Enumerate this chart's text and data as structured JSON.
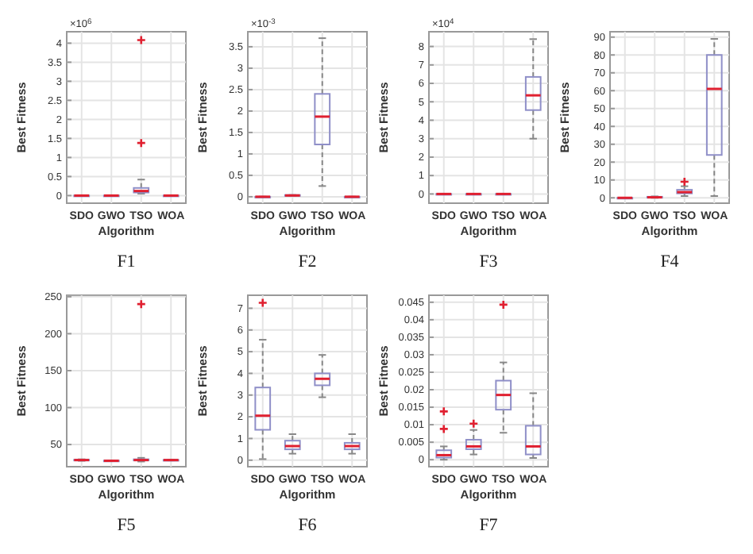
{
  "chart_data": [
    {
      "type": "box",
      "title": "F1",
      "xlabel": "Algorithm",
      "ylabel": "Best Fitness",
      "annotations": [
        "×10$^{6}$"
      ],
      "categories": [
        "SDO",
        "GWO",
        "TSO",
        "WOA"
      ],
      "ylim": [
        -0.2,
        4.3
      ],
      "yticks": [
        0,
        0.5,
        1,
        1.5,
        2,
        2.5,
        3,
        3.5,
        4
      ],
      "grid": true,
      "color": "#8f8fc8",
      "boxes": [
        {
          "low": 0,
          "q1": 0,
          "median": 0,
          "q3": 0,
          "high": 0
        },
        {
          "low": 0,
          "q1": 0,
          "median": 0,
          "q3": 0,
          "high": 0
        },
        {
          "low": 0.05,
          "q1": 0.08,
          "median": 0.12,
          "q3": 0.2,
          "high": 0.42,
          "outliers": [
            1.38,
            4.08
          ]
        },
        {
          "low": 0,
          "q1": 0,
          "median": 0,
          "q3": 0,
          "high": 0
        }
      ]
    },
    {
      "type": "box",
      "title": "F2",
      "xlabel": "Algorithm",
      "ylabel": "Best Fitness",
      "annotations": [
        "×10$^{-3}$"
      ],
      "categories": [
        "SDO",
        "GWO",
        "TSO",
        "WOA"
      ],
      "ylim": [
        -0.15,
        3.85
      ],
      "yticks": [
        0,
        0.5,
        1,
        1.5,
        2,
        2.5,
        3,
        3.5
      ],
      "grid": true,
      "color": "#8f8fc8",
      "boxes": [
        {
          "low": 0,
          "q1": 0,
          "median": 0,
          "q3": 0,
          "high": 0
        },
        {
          "low": 0.02,
          "q1": 0.02,
          "median": 0.03,
          "q3": 0.04,
          "high": 0.04
        },
        {
          "low": 0.25,
          "q1": 1.22,
          "median": 1.87,
          "q3": 2.4,
          "high": 3.7
        },
        {
          "low": 0,
          "q1": 0,
          "median": 0,
          "q3": 0,
          "high": 0
        }
      ]
    },
    {
      "type": "box",
      "title": "F3",
      "xlabel": "Algorithm",
      "ylabel": "Best Fitness",
      "annotations": [
        "×10$^{4}$"
      ],
      "categories": [
        "SDO",
        "GWO",
        "TSO",
        "WOA"
      ],
      "ylim": [
        -0.5,
        8.8
      ],
      "yticks": [
        0,
        1,
        2,
        3,
        4,
        5,
        6,
        7,
        8
      ],
      "grid": true,
      "color": "#8f8fc8",
      "boxes": [
        {
          "low": 0,
          "q1": 0,
          "median": 0,
          "q3": 0,
          "high": 0
        },
        {
          "low": 0,
          "q1": 0,
          "median": 0,
          "q3": 0,
          "high": 0
        },
        {
          "low": 0,
          "q1": 0,
          "median": 0,
          "q3": 0,
          "high": 0
        },
        {
          "low": 3.0,
          "q1": 4.55,
          "median": 5.35,
          "q3": 6.35,
          "high": 8.4
        }
      ]
    },
    {
      "type": "box",
      "title": "F4",
      "xlabel": "Algorithm",
      "ylabel": "Best Fitness",
      "categories": [
        "SDO",
        "GWO",
        "TSO",
        "WOA"
      ],
      "ylim": [
        -3,
        93
      ],
      "yticks": [
        0,
        10,
        20,
        30,
        40,
        50,
        60,
        70,
        80,
        90
      ],
      "grid": true,
      "color": "#8f8fc8",
      "boxes": [
        {
          "low": 0,
          "q1": 0,
          "median": 0,
          "q3": 0,
          "high": 0
        },
        {
          "low": 0,
          "q1": 0.1,
          "median": 0.3,
          "q3": 0.6,
          "high": 0.8
        },
        {
          "low": 1,
          "q1": 2.5,
          "median": 3.2,
          "q3": 4.5,
          "high": 6.5,
          "outliers": [
            9
          ]
        },
        {
          "low": 1,
          "q1": 24,
          "median": 61,
          "q3": 80,
          "high": 89
        }
      ]
    },
    {
      "type": "box",
      "title": "F5",
      "xlabel": "Algorithm",
      "ylabel": "Best Fitness",
      "categories": [
        "SDO",
        "GWO",
        "TSO",
        "WOA"
      ],
      "ylim": [
        20,
        252
      ],
      "yticks": [
        50,
        100,
        150,
        200,
        250
      ],
      "grid": true,
      "color": "#8f8fc8",
      "boxes": [
        {
          "low": 28,
          "q1": 28.5,
          "median": 29,
          "q3": 29.5,
          "high": 30
        },
        {
          "low": 27.5,
          "q1": 27.8,
          "median": 28,
          "q3": 28.3,
          "high": 28.5
        },
        {
          "low": 27,
          "q1": 28.5,
          "median": 29,
          "q3": 30,
          "high": 32,
          "outliers": [
            240
          ]
        },
        {
          "low": 28.5,
          "q1": 28.8,
          "median": 29,
          "q3": 29.2,
          "high": 29.5
        }
      ]
    },
    {
      "type": "box",
      "title": "F6",
      "xlabel": "Algorithm",
      "ylabel": "Best Fitness",
      "categories": [
        "SDO",
        "GWO",
        "TSO",
        "WOA"
      ],
      "ylim": [
        -0.3,
        7.6
      ],
      "yticks": [
        0,
        1,
        2,
        3,
        4,
        5,
        6,
        7
      ],
      "grid": true,
      "color": "#8f8fc8",
      "boxes": [
        {
          "low": 0.05,
          "q1": 1.4,
          "median": 2.05,
          "q3": 3.35,
          "high": 5.55,
          "outliers": [
            7.25
          ]
        },
        {
          "low": 0.3,
          "q1": 0.5,
          "median": 0.65,
          "q3": 0.9,
          "high": 1.2
        },
        {
          "low": 2.9,
          "q1": 3.45,
          "median": 3.75,
          "q3": 4.0,
          "high": 4.85
        },
        {
          "low": 0.3,
          "q1": 0.5,
          "median": 0.65,
          "q3": 0.8,
          "high": 1.2
        }
      ]
    },
    {
      "type": "box",
      "title": "F7",
      "xlabel": "Algorithm",
      "ylabel": "Best Fitness",
      "categories": [
        "SDO",
        "GWO",
        "TSO",
        "WOA"
      ],
      "ylim": [
        -0.002,
        0.047
      ],
      "yticks": [
        0,
        0.005,
        0.01,
        0.015,
        0.02,
        0.025,
        0.03,
        0.035,
        0.04,
        0.045
      ],
      "grid": true,
      "color": "#8f8fc8",
      "boxes": [
        {
          "low": 0,
          "q1": 0.0006,
          "median": 0.0013,
          "q3": 0.0027,
          "high": 0.0038,
          "outliers": [
            0.0088,
            0.0138
          ]
        },
        {
          "low": 0.0015,
          "q1": 0.003,
          "median": 0.0038,
          "q3": 0.0057,
          "high": 0.0085,
          "outliers": [
            0.0103
          ]
        },
        {
          "low": 0.0077,
          "q1": 0.0143,
          "median": 0.0185,
          "q3": 0.0226,
          "high": 0.0278,
          "outliers": [
            0.0443
          ]
        },
        {
          "low": 0.0005,
          "q1": 0.0015,
          "median": 0.0038,
          "q3": 0.0097,
          "high": 0.019
        }
      ]
    }
  ]
}
